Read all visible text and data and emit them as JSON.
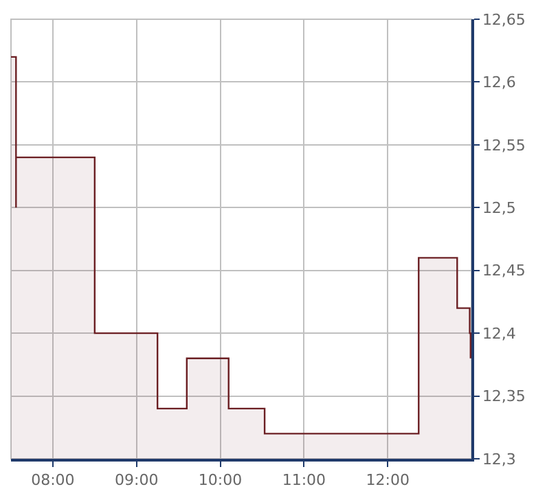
{
  "chart_data": {
    "type": "area",
    "x": [
      7.5,
      7.56,
      7.56,
      7.56,
      8.5,
      8.5,
      9.25,
      9.25,
      9.6,
      9.6,
      10.1,
      10.1,
      10.53,
      10.53,
      12.37,
      12.37,
      12.83,
      12.83,
      12.98,
      12.98,
      12.99,
      12.99
    ],
    "series": [
      {
        "color": "#6b1f23",
        "values": [
          12.62,
          12.62,
          12.5,
          12.54,
          12.54,
          12.4,
          12.4,
          12.34,
          12.34,
          12.38,
          12.38,
          12.34,
          12.34,
          12.32,
          12.32,
          12.46,
          12.46,
          12.42,
          12.42,
          12.4,
          12.4,
          12.38
        ]
      }
    ],
    "xlim": [
      7.5,
      13.0
    ],
    "xticks": [
      {
        "value": 8,
        "label": "08:00"
      },
      {
        "value": 9,
        "label": "09:00"
      },
      {
        "value": 10,
        "label": "10:00"
      },
      {
        "value": 11,
        "label": "11:00"
      },
      {
        "value": 12,
        "label": "12:00"
      }
    ],
    "ylim": [
      12.3,
      12.65
    ],
    "yticks": [
      {
        "value": 12.3,
        "label": "12,3"
      },
      {
        "value": 12.35,
        "label": "12,35"
      },
      {
        "value": 12.4,
        "label": "12,4"
      },
      {
        "value": 12.45,
        "label": "12,45"
      },
      {
        "value": 12.5,
        "label": "12,5"
      },
      {
        "value": 12.55,
        "label": "12,55"
      },
      {
        "value": 12.6,
        "label": "12,6"
      },
      {
        "value": 12.65,
        "label": "12,65"
      }
    ],
    "grid": true
  }
}
